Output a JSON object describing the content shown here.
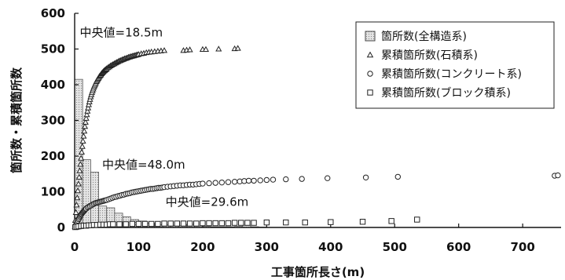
{
  "chart_data": {
    "type": "bar",
    "xlabel": "工事箇所長さ(m)",
    "ylabel": "箇所数・累積箇所数",
    "xlim": [
      0,
      760
    ],
    "ylim": [
      0,
      600
    ],
    "xticks": [
      0,
      100,
      200,
      300,
      400,
      500,
      600,
      700
    ],
    "yticks": [
      0,
      100,
      200,
      300,
      400,
      500,
      600
    ],
    "legend_position": "top-right",
    "grid": false,
    "colors": {
      "axis": "#111111",
      "bar_fill": "#e4e4e4",
      "marker": "#222222"
    },
    "annotations": [
      {
        "text": "中央値=18.5m",
        "x": 8,
        "y": 535
      },
      {
        "text": "中央値=48.0m",
        "x": 43,
        "y": 165
      },
      {
        "text": "中央値=29.6m",
        "x": 142,
        "y": 60
      }
    ],
    "histogram": {
      "name": "箇所数(全構造系)",
      "bin_width": 12.5,
      "bins": [
        {
          "x0": 0,
          "x1": 12.5,
          "value": 415
        },
        {
          "x0": 12.5,
          "x1": 25,
          "value": 190
        },
        {
          "x0": 25,
          "x1": 37.5,
          "value": 155
        },
        {
          "x0": 37.5,
          "x1": 50,
          "value": 60
        },
        {
          "x0": 50,
          "x1": 62.5,
          "value": 55
        },
        {
          "x0": 62.5,
          "x1": 75,
          "value": 40
        },
        {
          "x0": 75,
          "x1": 87.5,
          "value": 30
        },
        {
          "x0": 87.5,
          "x1": 100,
          "value": 22
        },
        {
          "x0": 100,
          "x1": 112.5,
          "value": 18
        },
        {
          "x0": 112.5,
          "x1": 125,
          "value": 12
        },
        {
          "x0": 125,
          "x1": 137.5,
          "value": 8
        },
        {
          "x0": 137.5,
          "x1": 150,
          "value": 7
        },
        {
          "x0": 150,
          "x1": 162.5,
          "value": 6
        },
        {
          "x0": 162.5,
          "x1": 175,
          "value": 5
        },
        {
          "x0": 175,
          "x1": 187.5,
          "value": 9
        },
        {
          "x0": 187.5,
          "x1": 200,
          "value": 4
        },
        {
          "x0": 200,
          "x1": 212.5,
          "value": 3
        },
        {
          "x0": 212.5,
          "x1": 225,
          "value": 2
        },
        {
          "x0": 225,
          "x1": 237.5,
          "value": 2
        },
        {
          "x0": 237.5,
          "x1": 250,
          "value": 2
        },
        {
          "x0": 250,
          "x1": 262.5,
          "value": 3
        },
        {
          "x0": 262.5,
          "x1": 275,
          "value": 6
        },
        {
          "x0": 275,
          "x1": 287.5,
          "value": 2
        },
        {
          "x0": 287.5,
          "x1": 300,
          "value": 1
        }
      ]
    },
    "series": [
      {
        "name": "累積箇所数(石積系)",
        "marker": "triangle",
        "x": [
          0.5,
          1,
          2,
          3,
          4,
          5,
          6,
          7,
          8,
          9,
          10,
          11,
          12,
          13,
          14,
          15,
          16,
          17,
          18,
          19,
          20,
          21,
          22,
          23,
          24,
          25,
          26,
          27,
          28,
          29,
          30,
          31,
          32,
          33,
          34,
          35,
          36,
          37,
          38,
          39,
          40,
          41,
          42,
          43,
          44,
          45,
          46,
          47,
          48,
          49,
          50,
          52,
          54,
          56,
          58,
          60,
          62,
          64,
          66,
          68,
          70,
          72,
          74,
          76,
          78,
          80,
          82,
          84,
          86,
          88,
          90,
          92,
          94,
          96,
          98,
          100,
          104,
          108,
          112,
          116,
          120,
          125,
          130,
          135,
          140,
          170,
          175,
          180,
          200,
          205,
          225,
          250,
          255
        ],
        "y": [
          2,
          20,
          42,
          63,
          83,
          103,
          122,
          141,
          159,
          177,
          194,
          211,
          227,
          242,
          256,
          270,
          283,
          295,
          306,
          316,
          326,
          335,
          344,
          352,
          359,
          366,
          372,
          378,
          383,
          388,
          393,
          397,
          401,
          405,
          409,
          412,
          415,
          418,
          421,
          424,
          426,
          428,
          431,
          433,
          435,
          437,
          439,
          440,
          442,
          443,
          445,
          448,
          450,
          453,
          455,
          457,
          459,
          461,
          463,
          465,
          467,
          468,
          470,
          471,
          473,
          474,
          475,
          477,
          478,
          479,
          480,
          481,
          482,
          483,
          484,
          485,
          487,
          488,
          490,
          491,
          492,
          493,
          494,
          495,
          496,
          496,
          497,
          498,
          499,
          499,
          500,
          501,
          502
        ]
      },
      {
        "name": "累積箇所数(コンクリート系)",
        "marker": "circle",
        "x": [
          1,
          2,
          3,
          4,
          5,
          6,
          7,
          8,
          9,
          10,
          11,
          12,
          13,
          14,
          15,
          16,
          17,
          18,
          20,
          22,
          24,
          26,
          28,
          30,
          32,
          34,
          36,
          38,
          40,
          42,
          44,
          46,
          48,
          50,
          53,
          56,
          59,
          62,
          65,
          68,
          71,
          74,
          77,
          80,
          83,
          86,
          89,
          92,
          95,
          98,
          101,
          104,
          107,
          110,
          113,
          116,
          119,
          122,
          125,
          128,
          131,
          134,
          137,
          140,
          145,
          150,
          155,
          160,
          165,
          170,
          175,
          180,
          185,
          190,
          195,
          200,
          210,
          220,
          230,
          240,
          250,
          258,
          265,
          272,
          280,
          290,
          300,
          310,
          330,
          355,
          395,
          455,
          505,
          750,
          755
        ],
        "y": [
          3,
          7,
          11,
          15,
          19,
          23,
          26,
          30,
          33,
          36,
          38,
          41,
          43,
          45,
          47,
          49,
          51,
          53,
          56,
          58,
          60,
          62,
          64,
          66,
          68,
          69,
          70,
          71,
          72,
          73,
          74,
          75,
          76,
          77,
          79,
          81,
          83,
          85,
          86,
          88,
          89,
          91,
          92,
          94,
          95,
          96,
          98,
          99,
          100,
          101,
          102,
          103,
          104,
          105,
          106,
          107,
          108,
          108,
          109,
          110,
          111,
          111,
          112,
          113,
          114,
          115,
          116,
          117,
          118,
          118,
          119,
          120,
          120,
          121,
          122,
          123,
          124,
          125,
          126,
          127,
          128,
          129,
          130,
          131,
          131,
          132,
          133,
          134,
          135,
          136,
          138,
          140,
          142,
          145,
          146
        ]
      },
      {
        "name": "累積箇所数(ブロック積系)",
        "marker": "square",
        "x": [
          1,
          3,
          6,
          10,
          14,
          18,
          22,
          26,
          30,
          35,
          40,
          45,
          50,
          55,
          60,
          70,
          80,
          90,
          100,
          110,
          120,
          130,
          140,
          150,
          160,
          170,
          180,
          190,
          200,
          210,
          220,
          230,
          240,
          250,
          260,
          270,
          280,
          300,
          330,
          360,
          400,
          450,
          495,
          535
        ],
        "y": [
          1,
          2,
          3,
          4,
          5,
          5,
          6,
          6,
          7,
          7,
          8,
          8,
          8,
          9,
          9,
          9,
          9,
          10,
          10,
          10,
          10,
          10,
          11,
          11,
          11,
          11,
          11,
          11,
          12,
          12,
          12,
          12,
          12,
          13,
          13,
          13,
          13,
          14,
          14,
          14,
          15,
          16,
          18,
          22
        ]
      }
    ]
  }
}
